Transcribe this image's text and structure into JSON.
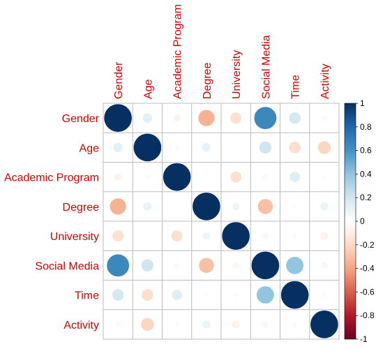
{
  "chart_data": {
    "type": "heatmap",
    "variables": [
      "Gender",
      "Age",
      "Academic Program",
      "Degree",
      "University",
      "Social Media",
      "Time",
      "Activity"
    ],
    "matrix": [
      [
        1.0,
        0.12,
        -0.07,
        -0.35,
        -0.17,
        0.65,
        0.18,
        -0.04
      ],
      [
        0.12,
        1.0,
        -0.03,
        0.1,
        0.02,
        0.2,
        -0.18,
        -0.22
      ],
      [
        -0.07,
        -0.03,
        1.0,
        0.0,
        -0.17,
        0.04,
        0.14,
        0.02
      ],
      [
        -0.35,
        0.1,
        0.0,
        1.0,
        0.08,
        -0.3,
        0.02,
        0.09
      ],
      [
        -0.17,
        0.02,
        -0.17,
        0.08,
        1.0,
        -0.05,
        0.03,
        -0.08
      ],
      [
        0.65,
        0.2,
        0.04,
        -0.3,
        -0.05,
        1.0,
        0.4,
        -0.05
      ],
      [
        0.18,
        -0.18,
        0.14,
        0.02,
        0.03,
        0.4,
        1.0,
        0.03
      ],
      [
        -0.04,
        -0.22,
        0.02,
        0.09,
        -0.08,
        -0.05,
        0.03,
        1.0
      ]
    ],
    "legend": {
      "ticks": [
        "1",
        "0.8",
        "0.6",
        "0.4",
        "0.2",
        "0",
        "-0.2",
        "-0.4",
        "-0.6",
        "-0.8",
        "-1"
      ],
      "range": [
        -1,
        1
      ],
      "placement": "right"
    },
    "colors": {
      "label": "#d40000",
      "grid": "#bbbbbb",
      "scale": [
        "#67001F",
        "#B2182B",
        "#D6604D",
        "#F4A582",
        "#FDDBC7",
        "#FFFFFF",
        "#D1E5F0",
        "#92C5DE",
        "#4393C3",
        "#2166AC",
        "#053061"
      ]
    }
  }
}
